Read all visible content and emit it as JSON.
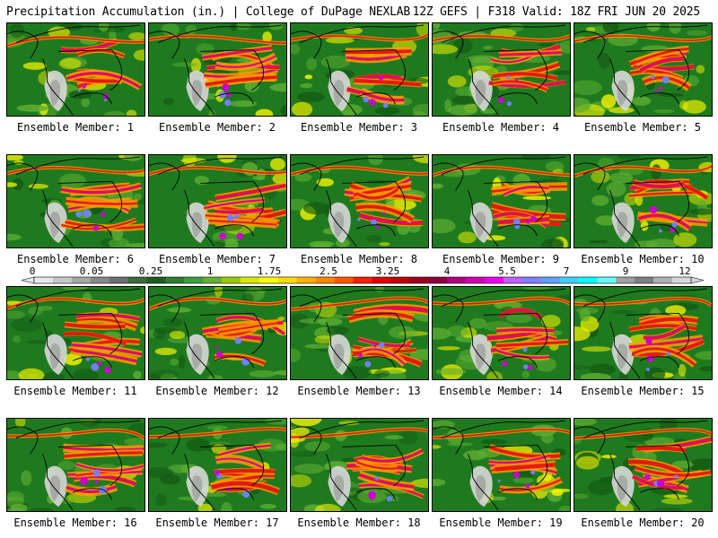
{
  "header": {
    "left": "Precipitation Accumulation (in.) | College of DuPage NEXLAB",
    "right": "12Z GEFS | F318 Valid: 18Z FRI JUN 20 2025"
  },
  "panel_label_prefix": "Ensemble Member: ",
  "members": [
    1,
    2,
    3,
    4,
    5,
    6,
    7,
    8,
    9,
    10,
    11,
    12,
    13,
    14,
    15,
    16,
    17,
    18,
    19,
    20
  ],
  "colorbar": {
    "tick_labels": [
      "0",
      "0.05",
      "0.25",
      "1",
      "1.75",
      "2.5",
      "3.25",
      "4",
      "5.5",
      "7",
      "9",
      "12"
    ],
    "colors": [
      "#e8e8e8",
      "#c8c8c8",
      "#a8a8a8",
      "#888888",
      "#6e6e6e",
      "#3d6b3d",
      "#1f5c1f",
      "#2f7f2f",
      "#3f9f3f",
      "#66b032",
      "#99cc00",
      "#d8e800",
      "#ffff00",
      "#ffdd00",
      "#ffb000",
      "#ff8800",
      "#ff5a00",
      "#ff2000",
      "#e00000",
      "#c00000",
      "#a00020",
      "#8b0040",
      "#b00080",
      "#d000b0",
      "#ee00ee",
      "#c060ff",
      "#8080ff",
      "#60a0ff",
      "#40d0ff",
      "#00ffff",
      "#60ffff",
      "#a0a0a0",
      "#808080",
      "#b0b0b0",
      "#d8d8d8"
    ]
  },
  "map_colors": {
    "base_green": "#1f7a1f",
    "dark_green": "#145a14",
    "light_green": "#5fae32",
    "yellow": "#f2f200",
    "orange": "#ff9a00",
    "red": "#e01010",
    "magenta": "#cc00cc",
    "blue": "#7080ff",
    "gray": "#9a9a9a",
    "light_gray": "#d8d8d8",
    "border": "#000000"
  }
}
